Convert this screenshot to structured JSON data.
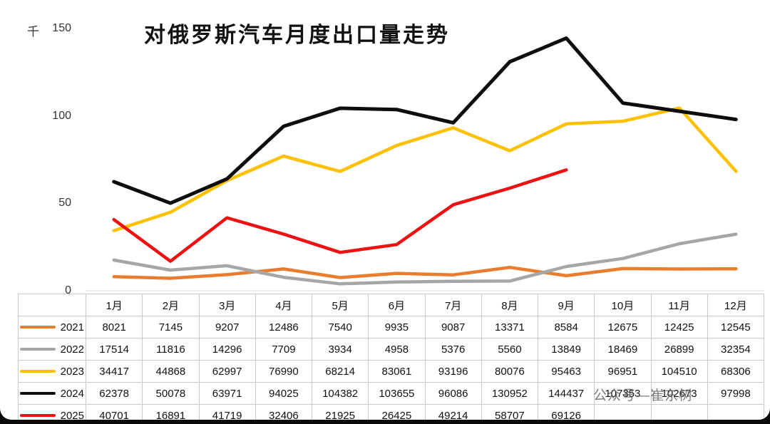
{
  "page": {
    "watermark": "公众号—崔东树"
  },
  "chart_data": {
    "type": "line",
    "title": "对俄罗斯汽车月度出口量走势",
    "y_axis_unit": "千",
    "categories": [
      "1月",
      "2月",
      "3月",
      "4月",
      "5月",
      "6月",
      "7月",
      "8月",
      "9月",
      "10月",
      "11月",
      "12月"
    ],
    "ylim": [
      0,
      150000
    ],
    "y_ticks": [
      {
        "label": "0",
        "value": 0
      },
      {
        "label": "50",
        "value": 50000
      },
      {
        "label": "100",
        "value": 100000
      },
      {
        "label": "150",
        "value": 150000
      }
    ],
    "grid": false,
    "legend_position": "table-first-column",
    "series": [
      {
        "name": "2021",
        "color": "#E87D2E",
        "values": [
          8021,
          7145,
          9207,
          12486,
          7540,
          9935,
          9087,
          13371,
          8584,
          12675,
          12425,
          12545
        ]
      },
      {
        "name": "2022",
        "color": "#A6A6A6",
        "values": [
          17514,
          11816,
          14296,
          7709,
          3934,
          4958,
          5376,
          5560,
          13849,
          18469,
          26899,
          32354
        ]
      },
      {
        "name": "2023",
        "color": "#FFC000",
        "values": [
          34417,
          44868,
          62997,
          76990,
          68214,
          83061,
          93196,
          80076,
          95463,
          96951,
          104510,
          68306
        ]
      },
      {
        "name": "2024",
        "color": "#0D0D0D",
        "values": [
          62378,
          50078,
          63971,
          94025,
          104382,
          103655,
          96086,
          130952,
          144437,
          107353,
          102673,
          97998
        ]
      },
      {
        "name": "2025",
        "color": "#EE1111",
        "values": [
          40701,
          16891,
          41719,
          32406,
          21925,
          26425,
          49214,
          58707,
          69126,
          null,
          null,
          null
        ]
      }
    ]
  }
}
